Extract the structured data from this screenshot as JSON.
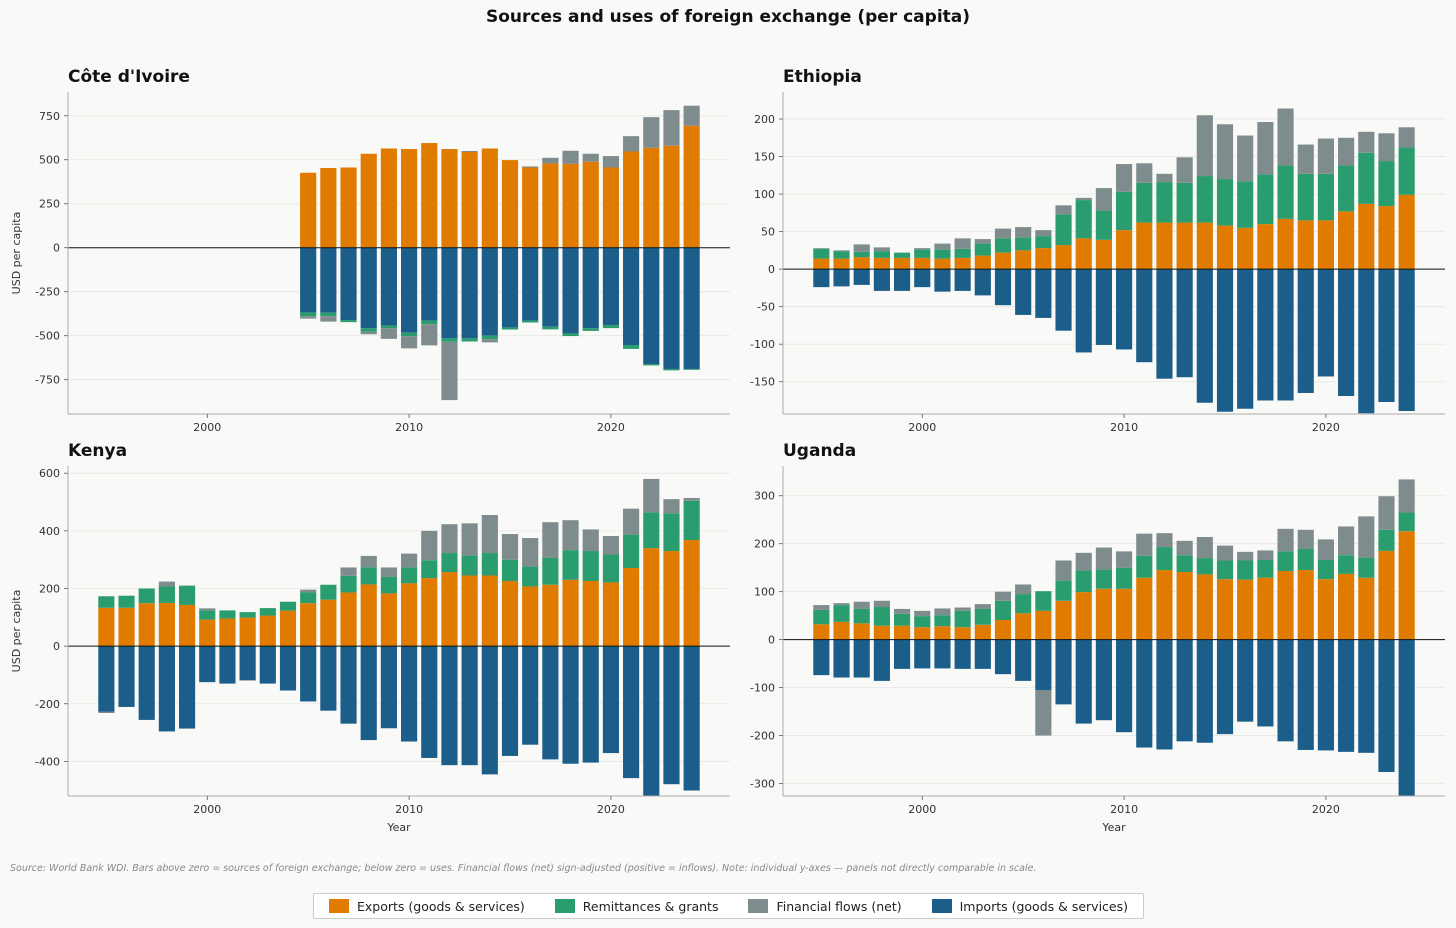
{
  "title": "Sources and uses of foreign exchange (per capita)",
  "source_note": "Source: World Bank WDI. Bars above zero = sources of foreign exchange; below zero = uses. Financial flows (net) sign-adjusted (positive = inflows). Note: individual y-axes — panels not directly comparable in scale.",
  "colors": {
    "exports": "#e07b00",
    "remittances": "#2a9d6e",
    "financial": "#7f8c8d",
    "imports": "#1b5e8a"
  },
  "legend": [
    {
      "key": "exports",
      "label": "Exports (goods & services)"
    },
    {
      "key": "remittances",
      "label": "Remittances & grants"
    },
    {
      "key": "financial",
      "label": "Financial flows (net)"
    },
    {
      "key": "imports",
      "label": "Imports (goods & services)"
    }
  ],
  "chart_data": [
    {
      "type": "bar",
      "stacked": true,
      "title": "Côte d'Ivoire",
      "ylabel": "USD per capita",
      "xlabel": "",
      "xlim": [
        1993.1,
        2025.9
      ],
      "ylim": [
        -945,
        885
      ],
      "xticks": [
        2000,
        2010,
        2020
      ],
      "yticks": [
        -750,
        -500,
        -250,
        0,
        250,
        500,
        750
      ],
      "ytick_labels": [
        "-750",
        "-500",
        "-250",
        "0",
        "250",
        "500",
        "750"
      ],
      "x": [
        2005,
        2006,
        2007,
        2008,
        2009,
        2010,
        2011,
        2012,
        2013,
        2014,
        2015,
        2016,
        2017,
        2018,
        2019,
        2020,
        2021,
        2022,
        2023,
        2024
      ],
      "series": [
        {
          "key": "exports",
          "name": "Exports (goods & services)",
          "values": [
            426,
            453,
            456,
            534,
            564,
            561,
            595,
            561,
            544,
            564,
            498,
            456,
            479,
            477,
            489,
            456,
            547,
            568,
            580,
            693
          ]
        },
        {
          "key": "remittances",
          "name": "Remittances & grants",
          "values": [
            -20,
            -20,
            -12,
            -20,
            -15,
            -20,
            -20,
            -20,
            -18,
            -20,
            -12,
            -10,
            -15,
            -15,
            -15,
            -18,
            -22,
            -8,
            -8,
            -5
          ]
        },
        {
          "key": "financial",
          "name": "Financial flows (net)",
          "values": [
            -14,
            -31,
            0,
            -14,
            -60,
            -69,
            -120,
            -331,
            6,
            -18,
            0,
            6,
            32,
            74,
            45,
            65,
            87,
            174,
            202,
            114
          ]
        },
        {
          "key": "imports",
          "name": "Imports (goods & services)",
          "values": [
            -369,
            -369,
            -411,
            -458,
            -443,
            -483,
            -415,
            -515,
            -515,
            -500,
            -453,
            -415,
            -449,
            -487,
            -458,
            -439,
            -553,
            -661,
            -689,
            -689
          ]
        }
      ]
    },
    {
      "type": "bar",
      "stacked": true,
      "title": "Ethiopia",
      "ylabel": "",
      "xlabel": "",
      "xlim": [
        1993.1,
        2025.9
      ],
      "ylim": [
        -193,
        236
      ],
      "xticks": [
        2000,
        2010,
        2020
      ],
      "yticks": [
        -150,
        -100,
        -50,
        0,
        50,
        100,
        150,
        200
      ],
      "ytick_labels": [
        "-150",
        "-100",
        "-50",
        "0",
        "50",
        "100",
        "150",
        "200"
      ],
      "x": [
        1995,
        1996,
        1997,
        1998,
        1999,
        2000,
        2001,
        2002,
        2003,
        2004,
        2005,
        2006,
        2007,
        2008,
        2009,
        2010,
        2011,
        2012,
        2013,
        2014,
        2015,
        2016,
        2017,
        2018,
        2019,
        2020,
        2021,
        2022,
        2023,
        2024
      ],
      "series": [
        {
          "key": "exports",
          "name": "Exports (goods & services)",
          "values": [
            14,
            14,
            16,
            15,
            15,
            15,
            14,
            15,
            18,
            22,
            25,
            28,
            32,
            41,
            39,
            52,
            62,
            62,
            62,
            62,
            58,
            55,
            60,
            67,
            65,
            65,
            77,
            87,
            84,
            99
          ]
        },
        {
          "key": "remittances",
          "name": "Remittances & grants",
          "values": [
            13,
            10,
            7,
            9,
            7,
            11,
            12,
            12,
            16,
            19,
            17,
            16,
            41,
            51,
            39,
            51,
            53,
            54,
            53,
            62,
            62,
            62,
            66,
            71,
            62,
            62,
            61,
            68,
            60,
            63
          ]
        },
        {
          "key": "financial",
          "name": "Financial flows (net)",
          "values": [
            1,
            1,
            10,
            5,
            0,
            2,
            8,
            14,
            6,
            13,
            14,
            8,
            12,
            3,
            30,
            37,
            26,
            11,
            34,
            81,
            73,
            61,
            70,
            76,
            39,
            47,
            37,
            28,
            37,
            27
          ]
        },
        {
          "key": "imports",
          "name": "Imports (goods & services)",
          "values": [
            -24,
            -23,
            -21,
            -29,
            -29,
            -24,
            -30,
            -29,
            -35,
            -48,
            -61,
            -65,
            -82,
            -111,
            -101,
            -107,
            -124,
            -146,
            -144,
            -178,
            -190,
            -186,
            -175,
            -175,
            -165,
            -143,
            -169,
            -192,
            -177,
            -189
          ]
        }
      ]
    },
    {
      "type": "bar",
      "stacked": true,
      "title": "Kenya",
      "ylabel": "USD per capita",
      "xlabel": "Year",
      "xlim": [
        1993.1,
        2025.9
      ],
      "ylim": [
        -520,
        625
      ],
      "xticks": [
        2000,
        2010,
        2020
      ],
      "yticks": [
        -400,
        -200,
        0,
        200,
        400,
        600
      ],
      "ytick_labels": [
        "-400",
        "-200",
        "0",
        "200",
        "400",
        "600"
      ],
      "x": [
        1995,
        1996,
        1997,
        1998,
        1999,
        2000,
        2001,
        2002,
        2003,
        2004,
        2005,
        2006,
        2007,
        2008,
        2009,
        2010,
        2011,
        2012,
        2013,
        2014,
        2015,
        2016,
        2017,
        2018,
        2019,
        2020,
        2021,
        2022,
        2023,
        2024
      ],
      "series": [
        {
          "key": "exports",
          "name": "Exports (goods & services)",
          "values": [
            133,
            133,
            149,
            150,
            143,
            92,
            96,
            99,
            106,
            123,
            149,
            161,
            186,
            214,
            183,
            218,
            236,
            257,
            245,
            245,
            226,
            207,
            213,
            230,
            226,
            221,
            271,
            340,
            330,
            368
          ]
        },
        {
          "key": "remittances",
          "name": "Remittances & grants",
          "values": [
            40,
            42,
            51,
            57,
            67,
            32,
            28,
            19,
            26,
            31,
            37,
            52,
            58,
            59,
            57,
            55,
            62,
            66,
            70,
            78,
            74,
            69,
            93,
            103,
            104,
            97,
            116,
            124,
            131,
            136
          ]
        },
        {
          "key": "financial",
          "name": "Financial flows (net)",
          "values": [
            -4,
            0,
            0,
            17,
            0,
            7,
            0,
            -2,
            0,
            0,
            10,
            0,
            29,
            40,
            33,
            48,
            102,
            100,
            111,
            132,
            89,
            99,
            124,
            104,
            75,
            64,
            90,
            116,
            49,
            10
          ]
        },
        {
          "key": "imports",
          "name": "Imports (goods & services)",
          "values": [
            -228,
            -211,
            -256,
            -296,
            -286,
            -125,
            -130,
            -118,
            -130,
            -154,
            -192,
            -224,
            -269,
            -326,
            -285,
            -331,
            -388,
            -413,
            -413,
            -445,
            -381,
            -342,
            -393,
            -408,
            -404,
            -371,
            -458,
            -520,
            -479,
            -501
          ]
        }
      ]
    },
    {
      "type": "bar",
      "stacked": true,
      "title": "Uganda",
      "ylabel": "",
      "xlabel": "Year",
      "xlim": [
        1993.1,
        2025.9
      ],
      "ylim": [
        -326,
        362
      ],
      "xticks": [
        2000,
        2010,
        2020
      ],
      "yticks": [
        -300,
        -200,
        -100,
        0,
        100,
        200,
        300
      ],
      "ytick_labels": [
        "-300",
        "-200",
        "-100",
        "0",
        "100",
        "200",
        "300"
      ],
      "x": [
        1995,
        1996,
        1997,
        1998,
        1999,
        2000,
        2001,
        2002,
        2003,
        2004,
        2005,
        2006,
        2007,
        2008,
        2009,
        2010,
        2011,
        2012,
        2013,
        2014,
        2015,
        2016,
        2017,
        2018,
        2019,
        2020,
        2021,
        2022,
        2023,
        2024
      ],
      "series": [
        {
          "key": "exports",
          "name": "Exports (goods & services)",
          "values": [
            32,
            37,
            34,
            29,
            29,
            26,
            28,
            26,
            31,
            41,
            55,
            60,
            81,
            99,
            106,
            106,
            129,
            145,
            141,
            136,
            126,
            125,
            129,
            143,
            145,
            126,
            137,
            129,
            185,
            226
          ]
        },
        {
          "key": "remittances",
          "name": "Remittances & grants",
          "values": [
            30,
            35,
            30,
            39,
            25,
            23,
            23,
            34,
            33,
            40,
            40,
            41,
            42,
            45,
            40,
            44,
            46,
            48,
            35,
            34,
            39,
            40,
            37,
            41,
            44,
            40,
            39,
            42,
            44,
            39
          ]
        },
        {
          "key": "financial",
          "name": "Financial flows (net)",
          "values": [
            10,
            4,
            15,
            13,
            10,
            11,
            14,
            7,
            10,
            19,
            20,
            -95,
            42,
            37,
            46,
            34,
            46,
            29,
            30,
            44,
            31,
            18,
            20,
            47,
            40,
            43,
            60,
            86,
            70,
            69
          ]
        },
        {
          "key": "imports",
          "name": "Imports (goods & services)",
          "values": [
            -74,
            -79,
            -79,
            -86,
            -61,
            -60,
            -60,
            -61,
            -61,
            -72,
            -86,
            -105,
            -135,
            -175,
            -168,
            -193,
            -225,
            -229,
            -212,
            -215,
            -197,
            -171,
            -181,
            -212,
            -230,
            -231,
            -234,
            -236,
            -276,
            -326
          ]
        }
      ]
    }
  ]
}
